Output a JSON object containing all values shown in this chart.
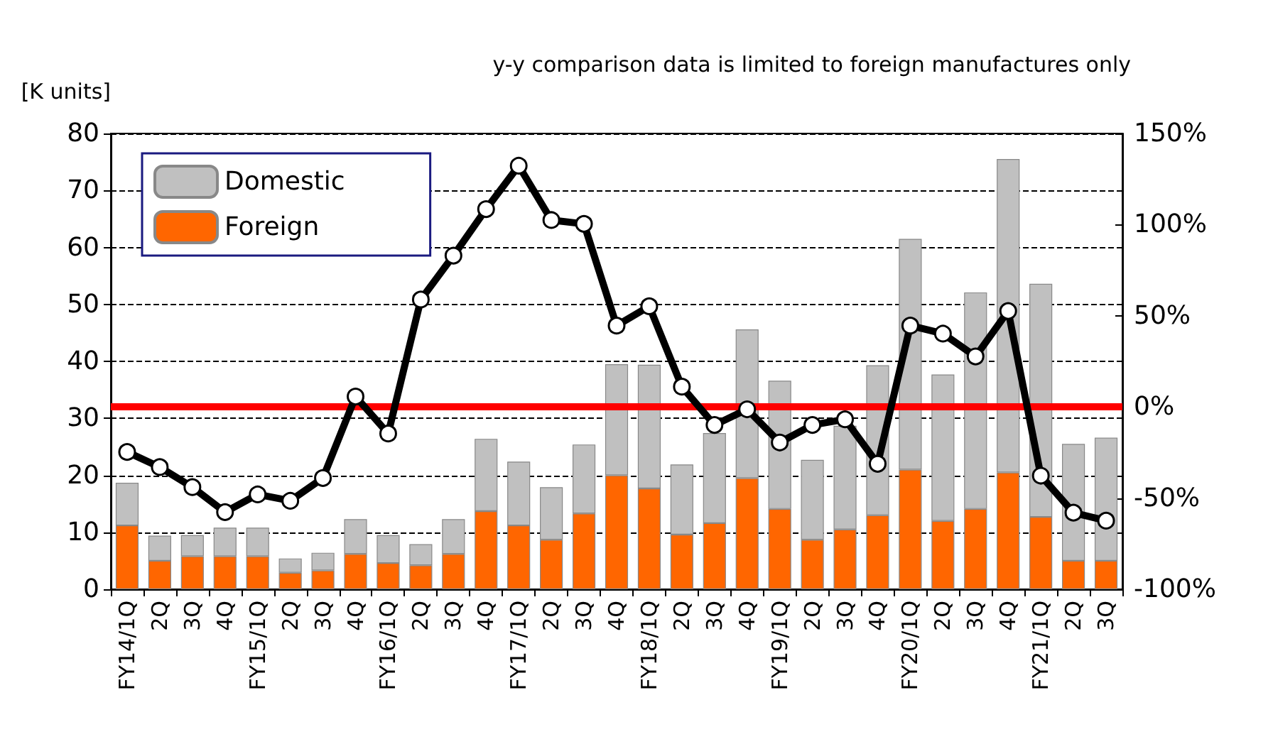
{
  "chart_data": {
    "type": "bar",
    "stacked": true,
    "annotations": [
      "y-y comparison data is limited to foreign manufactures only"
    ],
    "ylabel": "[K units]",
    "categories": [
      "FY14/1Q",
      "2Q",
      "3Q",
      "4Q",
      "FY15/1Q",
      "2Q",
      "3Q",
      "4Q",
      "FY16/1Q",
      "2Q",
      "3Q",
      "4Q",
      "FY17/1Q",
      "2Q",
      "3Q",
      "4Q",
      "FY18/1Q",
      "2Q",
      "3Q",
      "4Q",
      "FY19/1Q",
      "2Q",
      "3Q",
      "4Q",
      "FY20/1Q",
      "2Q",
      "3Q",
      "4Q",
      "FY21/1Q",
      "2Q",
      "3Q"
    ],
    "series": [
      {
        "name": "Foreign",
        "color": "#ff6600",
        "values": [
          11.2,
          5,
          5.8,
          5.8,
          5.8,
          2.9,
          3.3,
          6.2,
          4.6,
          4.2,
          6.2,
          13.7,
          11.2,
          8.7,
          13.3,
          20,
          17.7,
          9.6,
          11.6,
          19.5,
          14.1,
          8.7,
          10.5,
          13,
          21,
          12,
          14.1,
          20.5,
          12.7,
          5,
          5
        ]
      },
      {
        "name": "Domestic",
        "color": "#c0c0c0",
        "values": [
          7.5,
          4.4,
          3.7,
          5,
          5,
          2.5,
          3.1,
          6.1,
          4.9,
          3.7,
          6.1,
          12.7,
          11.2,
          9.2,
          12.1,
          19.5,
          21.7,
          12.3,
          15.8,
          26.1,
          22.5,
          14,
          18.2,
          26.3,
          40.5,
          25.7,
          38,
          55,
          40.9,
          20.5,
          21.6
        ]
      },
      {
        "type": "line",
        "axis": "y2",
        "color": "#000000",
        "marker": "circle",
        "line_style": "solid",
        "values": [
          -24.7,
          -33,
          -44,
          -57.7,
          -48,
          -51.5,
          -39,
          5.7,
          -14.6,
          58.9,
          83,
          108.5,
          132.3,
          102.5,
          100.4,
          44.6,
          55.2,
          11.1,
          -9.9,
          -1.3,
          -19.5,
          -9.9,
          -6.8,
          -31.2,
          44.6,
          40.2,
          27.7,
          52.6,
          -37.7,
          -58,
          -62.4
        ]
      }
    ],
    "ylim": [
      0,
      80
    ],
    "yticks": [
      0,
      10,
      20,
      30,
      40,
      50,
      60,
      70,
      80
    ],
    "y2lim": [
      -100,
      150
    ],
    "y2ticks": [
      {
        "value": -100,
        "label": "-100%"
      },
      {
        "value": -50,
        "label": "-50%"
      },
      {
        "value": 0,
        "label": "0%"
      },
      {
        "value": 50,
        "label": "50%"
      },
      {
        "value": 100,
        "label": "100%"
      },
      {
        "value": 150,
        "label": "150%"
      }
    ],
    "ref_lines": [
      {
        "axis": "y2",
        "value": 0,
        "color": "#ff0000"
      }
    ],
    "grid": "y",
    "legend": "top left"
  }
}
